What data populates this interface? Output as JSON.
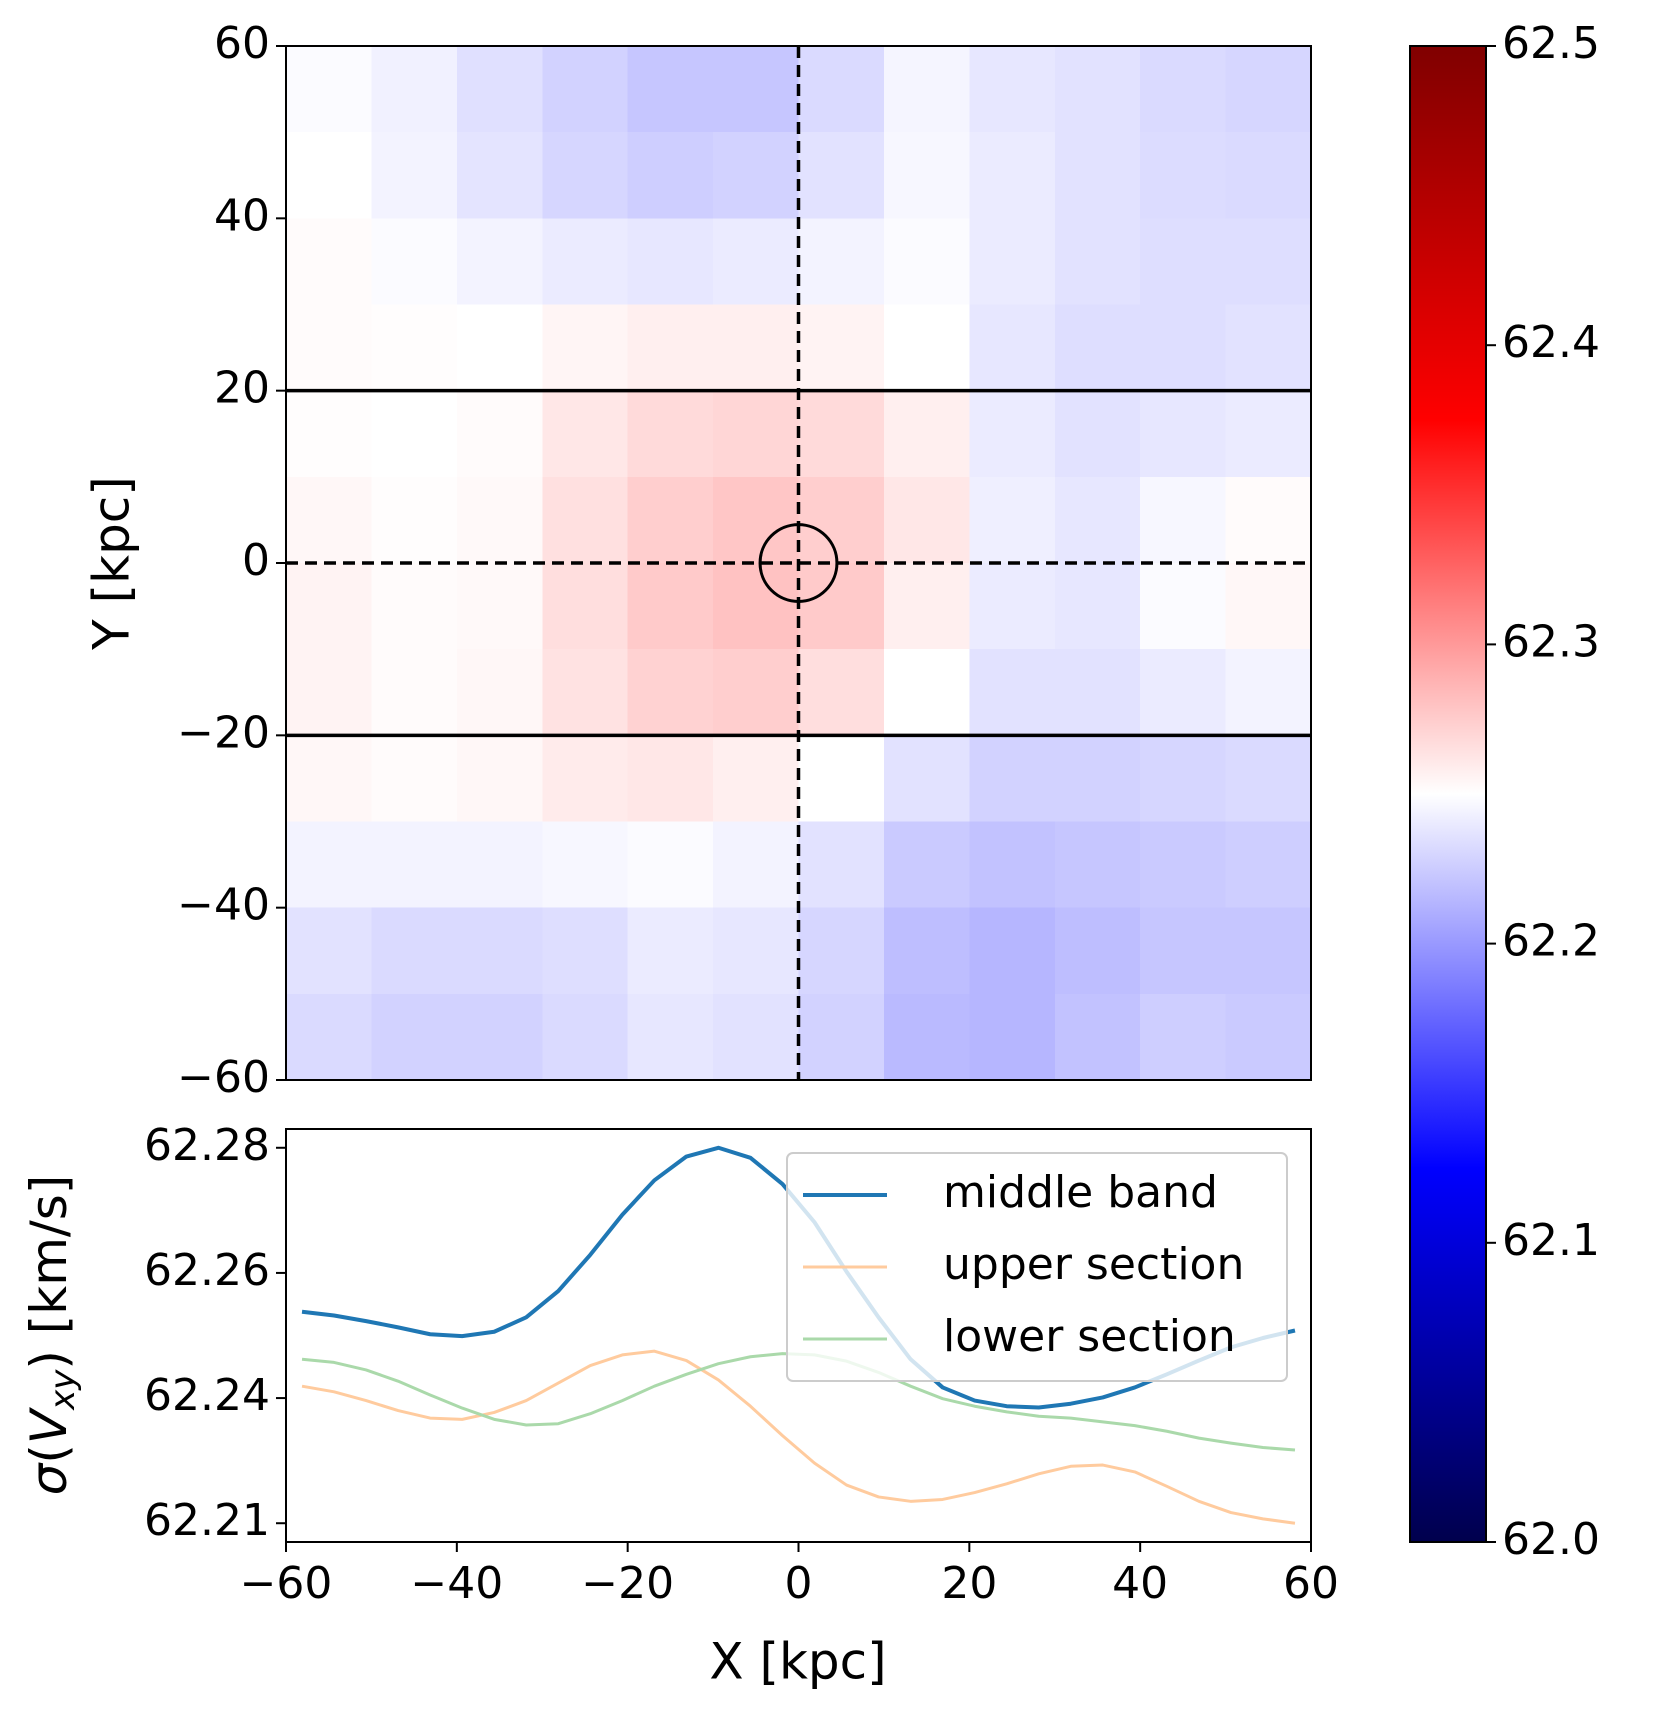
{
  "chart_data": [
    {
      "type": "heatmap",
      "ylabel": "Y [kpc]",
      "xlim": [
        -60,
        60
      ],
      "ylim": [
        -60,
        60
      ],
      "yticks": [
        {
          "value": -60,
          "label": "−60"
        },
        {
          "value": -40,
          "label": "−40"
        },
        {
          "value": -20,
          "label": "−20"
        },
        0,
        20,
        40,
        60
      ],
      "colormap": "seismic",
      "clim": [
        62.0,
        62.5
      ],
      "cticks": [
        {
          "value": 62.0,
          "label": "62.0"
        },
        62.1,
        62.2,
        62.3,
        62.4,
        62.5
      ],
      "hlines": [
        20,
        -20
      ],
      "dashed_lines": {
        "x": 0,
        "y": 0
      },
      "circle": {
        "x": 0,
        "y": 0,
        "radius": 4.5
      },
      "z": [
        [
          62.248,
          62.243,
          62.235,
          62.228,
          62.222,
          62.222,
          62.232,
          62.245,
          62.238,
          62.236,
          62.232,
          62.23
        ],
        [
          62.25,
          62.244,
          62.237,
          62.23,
          62.226,
          62.228,
          62.236,
          62.246,
          62.24,
          62.236,
          62.233,
          62.232
        ],
        [
          62.252,
          62.248,
          62.244,
          62.24,
          62.238,
          62.24,
          62.244,
          62.248,
          62.24,
          62.236,
          62.234,
          62.234
        ],
        [
          62.252,
          62.251,
          62.25,
          62.255,
          62.258,
          62.258,
          62.256,
          62.25,
          62.238,
          62.234,
          62.234,
          62.236
        ],
        [
          62.251,
          62.25,
          62.252,
          62.262,
          62.268,
          62.27,
          62.268,
          62.258,
          62.24,
          62.236,
          62.238,
          62.24
        ],
        [
          62.254,
          62.251,
          62.253,
          62.265,
          62.274,
          62.278,
          62.274,
          62.262,
          62.242,
          62.238,
          62.246,
          62.252
        ],
        [
          62.256,
          62.252,
          62.253,
          62.266,
          62.276,
          62.28,
          62.276,
          62.258,
          62.24,
          62.238,
          62.248,
          62.254
        ],
        [
          62.256,
          62.252,
          62.254,
          62.264,
          62.272,
          62.274,
          62.266,
          62.25,
          62.236,
          62.236,
          62.24,
          62.244
        ],
        [
          62.254,
          62.252,
          62.254,
          62.26,
          62.262,
          62.258,
          62.25,
          62.236,
          62.228,
          62.228,
          62.23,
          62.232
        ],
        [
          62.244,
          62.244,
          62.244,
          62.246,
          62.248,
          62.244,
          62.236,
          62.224,
          62.22,
          62.222,
          62.224,
          62.226
        ],
        [
          62.236,
          62.232,
          62.232,
          62.234,
          62.24,
          62.238,
          62.23,
          62.218,
          62.214,
          62.218,
          62.222,
          62.222
        ],
        [
          62.232,
          62.228,
          62.228,
          62.232,
          62.238,
          62.236,
          62.228,
          62.216,
          62.214,
          62.22,
          62.226,
          62.224
        ]
      ]
    },
    {
      "type": "line",
      "xlabel": "X [kpc]",
      "ylabel": {
        "symbol": "σ",
        "open": "(",
        "variable": "V",
        "subscript": "xy",
        "unit": ") [km/s]"
      },
      "xlim": [
        -60,
        60
      ],
      "ylim": [
        62.212,
        62.278
      ],
      "xticks": [
        {
          "value": -60,
          "label": "−60"
        },
        {
          "value": -40,
          "label": "−40"
        },
        {
          "value": -20,
          "label": "−20"
        },
        0,
        20,
        40,
        60
      ],
      "yticks": [
        {
          "value": 62.215,
          "label": "62.21"
        },
        {
          "value": 62.235,
          "label": "62.24"
        },
        {
          "value": 62.255,
          "label": "62.26"
        },
        {
          "value": 62.275,
          "label": "62.28"
        }
      ],
      "legend": "upper right",
      "x": [
        -58.125,
        -54.375,
        -50.625,
        -46.875,
        -43.125,
        -39.375,
        -35.625,
        -31.875,
        -28.125,
        -24.375,
        -20.625,
        -16.875,
        -13.125,
        -9.375,
        -5.625,
        -1.875,
        1.875,
        5.625,
        9.375,
        13.125,
        16.875,
        20.625,
        24.375,
        28.125,
        31.875,
        35.625,
        39.375,
        43.125,
        46.875,
        50.625,
        54.375,
        58.125
      ],
      "series": [
        {
          "name": "middle band",
          "color": "#1f77b4",
          "width": 4,
          "values": [
            62.2488,
            62.2482,
            62.2473,
            62.2463,
            62.2452,
            62.2449,
            62.2456,
            62.2479,
            62.2521,
            62.2579,
            62.2643,
            62.2698,
            62.2736,
            62.275,
            62.2734,
            62.2692,
            62.2631,
            62.2552,
            62.2479,
            62.2412,
            62.2367,
            62.2346,
            62.2337,
            62.2335,
            62.2341,
            62.2351,
            62.2367,
            62.2388,
            62.241,
            62.2431,
            62.2446,
            62.2458
          ]
        },
        {
          "name": "upper section",
          "color": "#ffcb9e",
          "width": 3,
          "values": [
            62.2369,
            62.236,
            62.2346,
            62.233,
            62.2318,
            62.2316,
            62.2327,
            62.2346,
            62.2374,
            62.2402,
            62.2419,
            62.2425,
            62.241,
            62.2379,
            62.2337,
            62.229,
            62.2246,
            62.2211,
            62.2192,
            62.2185,
            62.2188,
            62.2199,
            62.2213,
            62.2229,
            62.2241,
            62.2243,
            62.2232,
            62.2209,
            62.2185,
            62.2167,
            62.2157,
            62.215
          ]
        },
        {
          "name": "lower section",
          "color": "#aad9aa",
          "width": 3,
          "values": [
            62.2412,
            62.2407,
            62.2395,
            62.2377,
            62.2355,
            62.2334,
            62.2316,
            62.2307,
            62.2309,
            62.2325,
            62.2346,
            62.2369,
            62.2388,
            62.2405,
            62.2416,
            62.2421,
            62.2419,
            62.2409,
            62.2391,
            62.2369,
            62.2349,
            62.2337,
            62.2328,
            62.2321,
            62.2318,
            62.2312,
            62.2306,
            62.2297,
            62.2286,
            62.2278,
            62.2271,
            62.2267
          ]
        }
      ]
    }
  ]
}
